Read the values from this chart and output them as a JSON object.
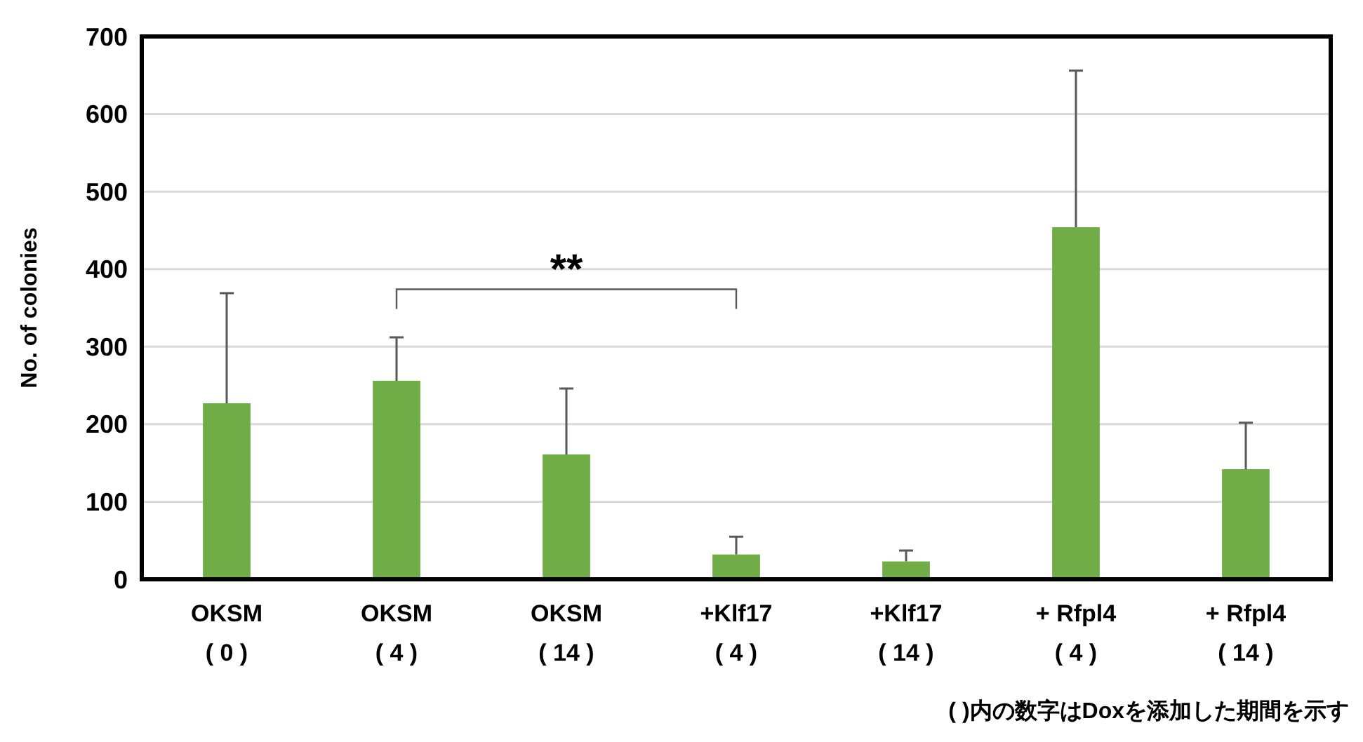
{
  "chart_data": {
    "type": "bar",
    "ylabel": "No. of colonies",
    "categories": [
      "OKSM\n( 0 )",
      "OKSM\n( 4 )",
      "OKSM\n( 14 )",
      "+Klf17\n( 4 )",
      "+Klf17\n( 14 )",
      "+ Rfpl4\n( 4 )",
      "+ Rfpl4\n( 14 )"
    ],
    "values": [
      227,
      256,
      161,
      32,
      23,
      454,
      142
    ],
    "errors": [
      [
        227,
        369
      ],
      [
        256,
        312
      ],
      [
        161,
        246
      ],
      [
        32,
        55
      ],
      [
        23,
        37
      ],
      [
        454,
        656
      ],
      [
        142,
        202
      ]
    ],
    "color": "#70ad47",
    "ylim": [
      0,
      700
    ],
    "yticks": [
      0,
      100,
      200,
      300,
      400,
      500,
      600,
      700
    ],
    "grid": "y",
    "annotations": [
      "**",
      "( )内の数字はDoxを添加した期間を示す"
    ]
  }
}
